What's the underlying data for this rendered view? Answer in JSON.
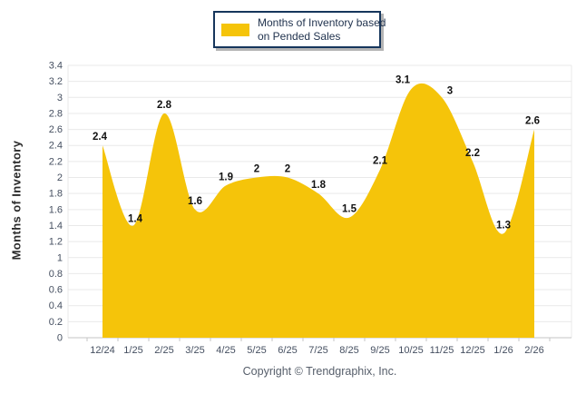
{
  "chart_data": {
    "type": "area",
    "series": [
      {
        "name": "Months of Inventory based on Pended Sales",
        "values": [
          2.4,
          1.4,
          2.8,
          1.6,
          1.9,
          2,
          2,
          1.8,
          1.5,
          2.1,
          3.1,
          3,
          2.2,
          1.3,
          2.6
        ]
      }
    ],
    "categories": [
      "12/24",
      "1/25",
      "2/25",
      "3/25",
      "4/25",
      "5/25",
      "6/25",
      "7/25",
      "8/25",
      "9/25",
      "10/25",
      "11/25",
      "12/25",
      "1/26",
      "2/26"
    ],
    "data_labels": [
      "2.4",
      "1.4",
      "2.8",
      "1.6",
      "1.9",
      "2",
      "2",
      "1.8",
      "1.5",
      "2.1",
      "3.1",
      "3",
      "2.2",
      "1.3",
      "2.6"
    ],
    "title": "",
    "xlabel": "",
    "ylabel": "Months of Inventory",
    "ylim": [
      0,
      3.4
    ],
    "ytick_step": 0.2,
    "yticks": [
      "0",
      "0.2",
      "0.4",
      "0.6",
      "0.8",
      "1",
      "1.2",
      "1.4",
      "1.6",
      "1.8",
      "2",
      "2.2",
      "2.4",
      "2.6",
      "2.8",
      "3",
      "3.2",
      "3.4"
    ],
    "grid": true,
    "legend_position": "top-center",
    "curve": "smooth-spline",
    "colors": {
      "area_fill": "#F5C40A",
      "gridline": "#E9E9E9",
      "axis_line": "#C6C6C6",
      "tick_label": "#454F60",
      "data_label": "#121212"
    }
  },
  "legend": {
    "line1": "Months of Inventory based",
    "line2": "on Pended Sales",
    "swatch_color": "#F5C40A",
    "border_color": "#16365C"
  },
  "footer": {
    "copyright": "Copyright © Trendgraphix, Inc."
  }
}
